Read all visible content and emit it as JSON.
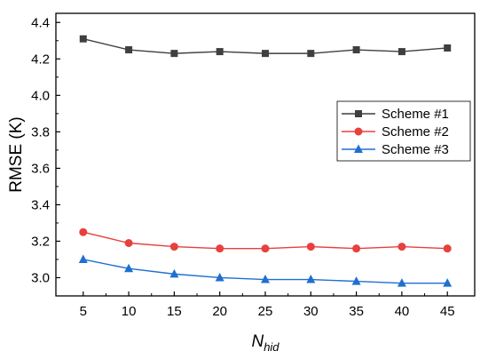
{
  "chart_data": {
    "type": "line",
    "x": [
      5,
      10,
      15,
      20,
      25,
      30,
      35,
      40,
      45
    ],
    "xlabel_main": "N",
    "xlabel_sub": "hid",
    "ylabel": "RMSE (K)",
    "xlim": [
      2,
      48
    ],
    "ylim": [
      2.9,
      4.45
    ],
    "xticks": [
      5,
      10,
      15,
      20,
      25,
      30,
      35,
      40,
      45
    ],
    "yticks": [
      3.0,
      3.2,
      3.4,
      3.6,
      3.8,
      4.0,
      4.2,
      4.4
    ],
    "grid": false,
    "legend_position": "right",
    "series": [
      {
        "name": "Scheme #1",
        "color": "#3f3f3f",
        "marker": "square",
        "values": [
          4.31,
          4.25,
          4.23,
          4.24,
          4.23,
          4.23,
          4.25,
          4.24,
          4.26
        ]
      },
      {
        "name": "Scheme #2",
        "color": "#e8403c",
        "marker": "circle",
        "values": [
          3.25,
          3.19,
          3.17,
          3.16,
          3.16,
          3.17,
          3.16,
          3.17,
          3.16
        ]
      },
      {
        "name": "Scheme #3",
        "color": "#1f6fd1",
        "marker": "triangle",
        "values": [
          3.1,
          3.05,
          3.02,
          3.0,
          2.99,
          2.99,
          2.98,
          2.97,
          2.97
        ]
      }
    ]
  }
}
